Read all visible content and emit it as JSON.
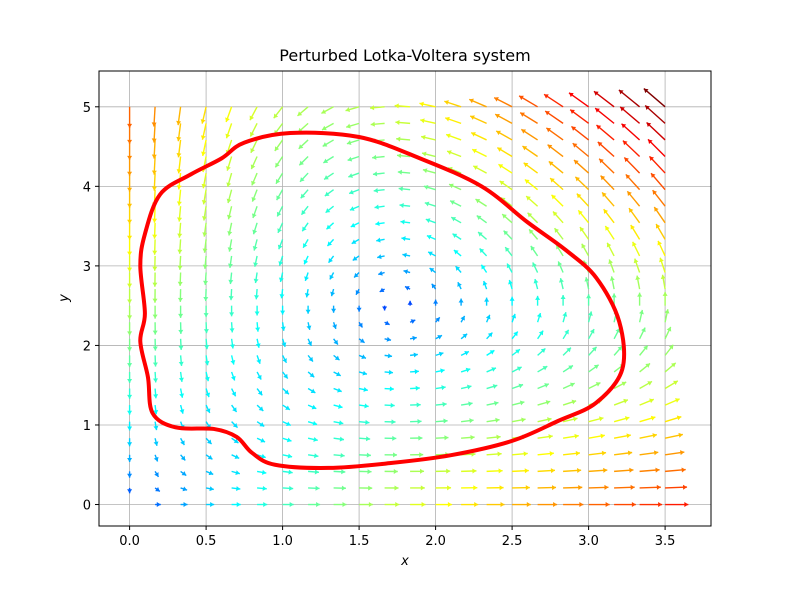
{
  "chart_data": {
    "type": "quiver",
    "title": "Perturbed Lotka-Voltera system",
    "xlabel": "x",
    "ylabel": "y",
    "xlim": [
      -0.2,
      3.8
    ],
    "ylim": [
      -0.27,
      5.45
    ],
    "xticks": [
      0.0,
      0.5,
      1.0,
      1.5,
      2.0,
      2.5,
      3.0,
      3.5
    ],
    "xtick_labels": [
      "0.0",
      "0.5",
      "1.0",
      "1.5",
      "2.0",
      "2.5",
      "3.0",
      "3.5"
    ],
    "yticks": [
      0,
      1,
      2,
      3,
      4,
      5
    ],
    "ytick_labels": [
      "0",
      "1",
      "2",
      "3",
      "4",
      "5"
    ],
    "grid": true,
    "vector_field": {
      "x_range": [
        0.0,
        3.5
      ],
      "y_range": [
        0.0,
        5.0
      ],
      "nx": 22,
      "ny": 25,
      "colormap": "jet",
      "equilibrium": [
        1.75,
        2.5
      ]
    },
    "trajectory": {
      "color": "#ff0000",
      "points": [
        [
          1.05,
          4.67
        ],
        [
          1.5,
          4.62
        ],
        [
          1.9,
          4.35
        ],
        [
          2.3,
          4.0
        ],
        [
          2.6,
          3.55
        ],
        [
          2.85,
          3.2
        ],
        [
          3.05,
          2.85
        ],
        [
          3.2,
          2.3
        ],
        [
          3.22,
          1.7
        ],
        [
          3.05,
          1.28
        ],
        [
          2.8,
          1.05
        ],
        [
          2.5,
          0.8
        ],
        [
          2.1,
          0.62
        ],
        [
          1.7,
          0.52
        ],
        [
          1.3,
          0.46
        ],
        [
          0.95,
          0.5
        ],
        [
          0.8,
          0.65
        ],
        [
          0.7,
          0.85
        ],
        [
          0.55,
          0.95
        ],
        [
          0.3,
          0.97
        ],
        [
          0.15,
          1.15
        ],
        [
          0.12,
          1.6
        ],
        [
          0.07,
          2.05
        ],
        [
          0.1,
          2.4
        ],
        [
          0.07,
          3.0
        ],
        [
          0.1,
          3.4
        ],
        [
          0.2,
          3.9
        ],
        [
          0.4,
          4.15
        ],
        [
          0.6,
          4.35
        ],
        [
          0.75,
          4.55
        ]
      ]
    }
  }
}
